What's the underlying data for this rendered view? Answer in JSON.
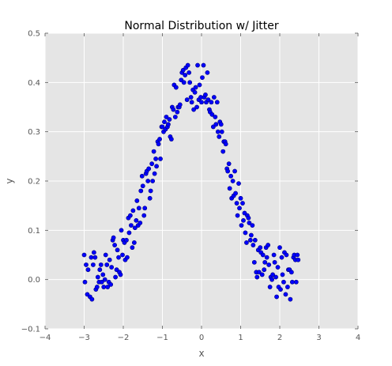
{
  "chart_data": {
    "type": "scatter",
    "title": "Normal Distribution w/ Jitter",
    "xlabel": "x",
    "ylabel": "y",
    "xlim": [
      -4,
      4
    ],
    "ylim": [
      -0.1,
      0.5
    ],
    "xticks": [
      -4,
      -3,
      -2,
      -1,
      0,
      1,
      2,
      3,
      4
    ],
    "xtick_labels": [
      "−4",
      "−3",
      "−2",
      "−1",
      "0",
      "1",
      "2",
      "3",
      "4"
    ],
    "yticks": [
      -0.1,
      0.0,
      0.1,
      0.2,
      0.3,
      0.4,
      0.5
    ],
    "ytick_labels": [
      "−0.1",
      "0.0",
      "0.1",
      "0.2",
      "0.3",
      "0.4",
      "0.5"
    ],
    "grid": true,
    "colors": {
      "background": "#e5e5e5",
      "grid": "#ffffff",
      "point": "#0000ff"
    },
    "series": [
      {
        "points": [
          [
            -3.0,
            0.05
          ],
          [
            -2.98,
            -0.005
          ],
          [
            -2.95,
            0.03
          ],
          [
            -2.92,
            -0.03
          ],
          [
            -2.9,
            0.02
          ],
          [
            -2.85,
            -0.035
          ],
          [
            -2.82,
            0.045
          ],
          [
            -2.8,
            -0.04
          ],
          [
            -2.77,
            0.03
          ],
          [
            -2.75,
            0.055
          ],
          [
            -2.72,
            0.045
          ],
          [
            -2.7,
            -0.02
          ],
          [
            -2.67,
            -0.015
          ],
          [
            -2.65,
            0.005
          ],
          [
            -2.62,
            -0.005
          ],
          [
            -2.6,
            0.02
          ],
          [
            -2.57,
            0.03
          ],
          [
            -2.55,
            -0.005
          ],
          [
            -2.52,
            0.01
          ],
          [
            -2.5,
            -0.015
          ],
          [
            -2.47,
            0.0
          ],
          [
            -2.45,
            0.05
          ],
          [
            -2.42,
            0.03
          ],
          [
            -2.4,
            -0.015
          ],
          [
            -2.37,
            -0.005
          ],
          [
            -2.35,
            0.04
          ],
          [
            -2.32,
            -0.01
          ],
          [
            -2.3,
            0.025
          ],
          [
            -2.27,
            0.08
          ],
          [
            -2.25,
            0.085
          ],
          [
            -2.22,
            0.07
          ],
          [
            -2.2,
            0.005
          ],
          [
            -2.17,
            0.02
          ],
          [
            -2.15,
            0.06
          ],
          [
            -2.12,
            0.045
          ],
          [
            -2.1,
            0.015
          ],
          [
            -2.07,
            0.01
          ],
          [
            -2.05,
            0.1
          ],
          [
            -2.02,
            0.05
          ],
          [
            -2.0,
            0.08
          ],
          [
            -1.97,
            0.075
          ],
          [
            -1.95,
            0.04
          ],
          [
            -1.92,
            0.08
          ],
          [
            -1.9,
            0.045
          ],
          [
            -1.87,
            0.125
          ],
          [
            -1.85,
            0.095
          ],
          [
            -1.82,
            0.13
          ],
          [
            -1.8,
            0.11
          ],
          [
            -1.77,
            0.065
          ],
          [
            -1.75,
            0.14
          ],
          [
            -1.72,
            0.075
          ],
          [
            -1.7,
            0.105
          ],
          [
            -1.67,
            0.12
          ],
          [
            -1.65,
            0.16
          ],
          [
            -1.62,
            0.11
          ],
          [
            -1.6,
            0.145
          ],
          [
            -1.57,
            0.115
          ],
          [
            -1.55,
            0.18
          ],
          [
            -1.52,
            0.21
          ],
          [
            -1.5,
            0.19
          ],
          [
            -1.47,
            0.13
          ],
          [
            -1.45,
            0.145
          ],
          [
            -1.42,
            0.215
          ],
          [
            -1.4,
            0.22
          ],
          [
            -1.37,
            0.2
          ],
          [
            -1.35,
            0.225
          ],
          [
            -1.32,
            0.165
          ],
          [
            -1.3,
            0.18
          ],
          [
            -1.27,
            0.235
          ],
          [
            -1.25,
            0.2
          ],
          [
            -1.22,
            0.26
          ],
          [
            -1.2,
            0.215
          ],
          [
            -1.17,
            0.245
          ],
          [
            -1.15,
            0.23
          ],
          [
            -1.12,
            0.28
          ],
          [
            -1.1,
            0.275
          ],
          [
            -1.07,
            0.285
          ],
          [
            -1.05,
            0.245
          ],
          [
            -1.02,
            0.31
          ],
          [
            -1.0,
            0.31
          ],
          [
            -0.97,
            0.3
          ],
          [
            -0.95,
            0.32
          ],
          [
            -0.92,
            0.305
          ],
          [
            -0.9,
            0.33
          ],
          [
            -0.87,
            0.31
          ],
          [
            -0.85,
            0.315
          ],
          [
            -0.82,
            0.325
          ],
          [
            -0.8,
            0.29
          ],
          [
            -0.77,
            0.285
          ],
          [
            -0.75,
            0.35
          ],
          [
            -0.72,
            0.345
          ],
          [
            -0.7,
            0.395
          ],
          [
            -0.67,
            0.33
          ],
          [
            -0.65,
            0.39
          ],
          [
            -0.62,
            0.34
          ],
          [
            -0.6,
            0.35
          ],
          [
            -0.57,
            0.35
          ],
          [
            -0.55,
            0.355
          ],
          [
            -0.52,
            0.405
          ],
          [
            -0.5,
            0.42
          ],
          [
            -0.47,
            0.425
          ],
          [
            -0.45,
            0.4
          ],
          [
            -0.42,
            0.415
          ],
          [
            -0.4,
            0.43
          ],
          [
            -0.37,
            0.365
          ],
          [
            -0.35,
            0.435
          ],
          [
            -0.32,
            0.42
          ],
          [
            -0.3,
            0.4
          ],
          [
            -0.27,
            0.37
          ],
          [
            -0.25,
            0.36
          ],
          [
            -0.22,
            0.385
          ],
          [
            -0.2,
            0.345
          ],
          [
            -0.17,
            0.38
          ],
          [
            -0.15,
            0.39
          ],
          [
            -0.12,
            0.35
          ],
          [
            -0.1,
            0.435
          ],
          [
            -0.07,
            0.365
          ],
          [
            -0.05,
            0.395
          ],
          [
            -0.02,
            0.37
          ],
          [
            0.0,
            0.36
          ],
          [
            0.02,
            0.41
          ],
          [
            0.05,
            0.435
          ],
          [
            0.07,
            0.37
          ],
          [
            0.1,
            0.375
          ],
          [
            0.12,
            0.36
          ],
          [
            0.15,
            0.42
          ],
          [
            0.17,
            0.365
          ],
          [
            0.2,
            0.345
          ],
          [
            0.22,
            0.34
          ],
          [
            0.25,
            0.36
          ],
          [
            0.27,
            0.335
          ],
          [
            0.3,
            0.31
          ],
          [
            0.32,
            0.37
          ],
          [
            0.35,
            0.33
          ],
          [
            0.37,
            0.315
          ],
          [
            0.4,
            0.36
          ],
          [
            0.42,
            0.3
          ],
          [
            0.45,
            0.29
          ],
          [
            0.47,
            0.32
          ],
          [
            0.5,
            0.315
          ],
          [
            0.52,
            0.3
          ],
          [
            0.55,
            0.26
          ],
          [
            0.57,
            0.28
          ],
          [
            0.6,
            0.28
          ],
          [
            0.62,
            0.275
          ],
          [
            0.65,
            0.225
          ],
          [
            0.67,
            0.22
          ],
          [
            0.7,
            0.235
          ],
          [
            0.72,
            0.185
          ],
          [
            0.75,
            0.21
          ],
          [
            0.77,
            0.165
          ],
          [
            0.8,
            0.2
          ],
          [
            0.82,
            0.17
          ],
          [
            0.85,
            0.22
          ],
          [
            0.87,
            0.175
          ],
          [
            0.9,
            0.155
          ],
          [
            0.92,
            0.13
          ],
          [
            0.95,
            0.195
          ],
          [
            0.97,
            0.145
          ],
          [
            1.0,
            0.165
          ],
          [
            1.02,
            0.11
          ],
          [
            1.05,
            0.155
          ],
          [
            1.07,
            0.12
          ],
          [
            1.1,
            0.135
          ],
          [
            1.12,
            0.095
          ],
          [
            1.15,
            0.075
          ],
          [
            1.17,
            0.13
          ],
          [
            1.2,
            0.125
          ],
          [
            1.22,
            0.115
          ],
          [
            1.25,
            0.08
          ],
          [
            1.27,
            0.09
          ],
          [
            1.3,
            0.11
          ],
          [
            1.32,
            0.07
          ],
          [
            1.35,
            0.035
          ],
          [
            1.37,
            0.08
          ],
          [
            1.4,
            0.015
          ],
          [
            1.42,
            0.005
          ],
          [
            1.45,
            0.06
          ],
          [
            1.47,
            0.015
          ],
          [
            1.5,
            0.065
          ],
          [
            1.52,
            0.055
          ],
          [
            1.55,
            0.01
          ],
          [
            1.57,
            0.05
          ],
          [
            1.6,
            0.02
          ],
          [
            1.62,
            0.035
          ],
          [
            1.65,
            0.065
          ],
          [
            1.67,
            0.045
          ],
          [
            1.7,
            0.07
          ],
          [
            1.72,
            0.03
          ],
          [
            1.75,
            -0.015
          ],
          [
            1.77,
            0.005
          ],
          [
            1.8,
            0.0
          ],
          [
            1.82,
            0.01
          ],
          [
            1.85,
            0.05
          ],
          [
            1.87,
            0.035
          ],
          [
            1.9,
            0.005
          ],
          [
            1.92,
            -0.035
          ],
          [
            1.95,
            0.025
          ],
          [
            1.97,
            -0.015
          ],
          [
            2.0,
            0.065
          ],
          [
            2.02,
            -0.02
          ],
          [
            2.05,
            0.045
          ],
          [
            2.07,
            0.01
          ],
          [
            2.1,
            -0.005
          ],
          [
            2.12,
            0.055
          ],
          [
            2.15,
            -0.03
          ],
          [
            2.17,
            0.05
          ],
          [
            2.2,
            -0.015
          ],
          [
            2.22,
            0.02
          ],
          [
            2.25,
            0.02
          ],
          [
            2.27,
            -0.04
          ],
          [
            2.3,
            0.015
          ],
          [
            2.32,
            -0.005
          ],
          [
            2.35,
            0.045
          ],
          [
            2.37,
            0.05
          ],
          [
            2.4,
            0.04
          ],
          [
            2.42,
            -0.005
          ],
          [
            2.45,
            0.05
          ],
          [
            2.47,
            0.04
          ]
        ]
      }
    ]
  }
}
